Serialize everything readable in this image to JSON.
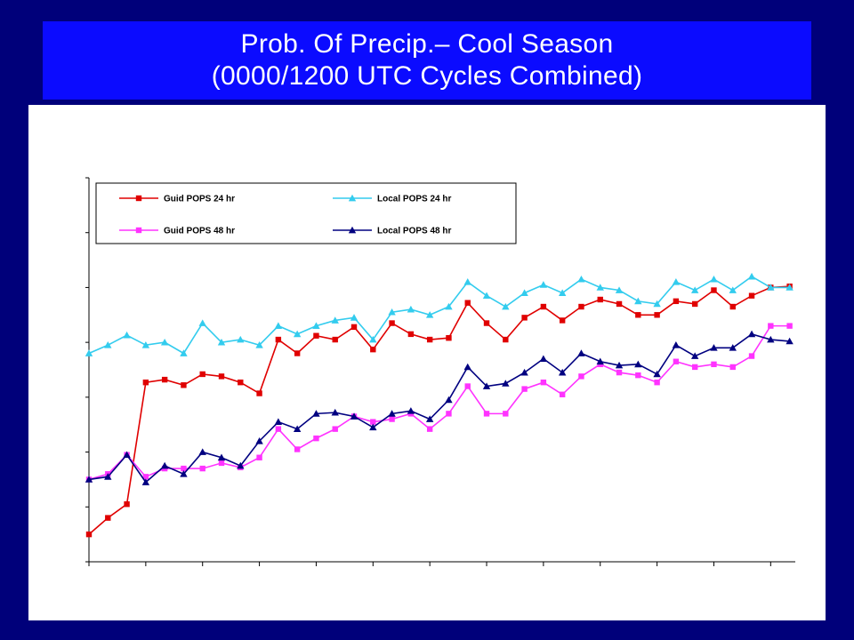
{
  "slide": {
    "title_line1": "Prob. Of Precip.– Cool Season",
    "title_line2": "(0000/1200 UTC Cycles Combined)"
  },
  "colors": {
    "background": "#00007a",
    "title_bar": "#0b0bff",
    "guid24": "#e00000",
    "local24": "#33ccee",
    "guid48": "#ff33ff",
    "local48": "#000080"
  },
  "chart_data": {
    "type": "line",
    "title": "",
    "xlabel": "",
    "ylabel": "",
    "x": [
      1,
      2,
      3,
      4,
      5,
      6,
      7,
      8,
      9,
      10,
      11,
      12,
      13,
      14,
      15,
      16,
      17,
      18,
      19,
      20,
      21,
      22,
      23,
      24,
      25,
      26,
      27,
      28,
      29,
      30,
      31,
      32,
      33,
      34,
      35,
      36,
      37,
      38
    ],
    "xlim": [
      1,
      38.3
    ],
    "ylim": [
      0,
      7
    ],
    "grid": false,
    "legend_position": "top-left",
    "series": [
      {
        "name": "Guid POPS 24 hr",
        "color": "#e00000",
        "marker": "square",
        "values": [
          0.5,
          0.8,
          1.05,
          3.27,
          3.32,
          3.22,
          3.42,
          3.38,
          3.27,
          3.07,
          4.05,
          3.8,
          4.12,
          4.05,
          4.28,
          3.87,
          4.35,
          4.15,
          4.05,
          4.08,
          4.72,
          4.35,
          4.05,
          4.45,
          4.65,
          4.4,
          4.65,
          4.78,
          4.7,
          4.5,
          4.5,
          4.75,
          4.7,
          4.95,
          4.65,
          4.85,
          5.0,
          5.02
        ]
      },
      {
        "name": "Local POPS 24 hr",
        "color": "#33ccee",
        "marker": "triangle",
        "values": [
          3.8,
          3.95,
          4.13,
          3.95,
          4.0,
          3.8,
          4.35,
          4.0,
          4.05,
          3.95,
          4.3,
          4.15,
          4.3,
          4.4,
          4.45,
          4.05,
          4.55,
          4.6,
          4.5,
          4.65,
          5.1,
          4.85,
          4.65,
          4.9,
          5.05,
          4.9,
          5.15,
          5.0,
          4.95,
          4.75,
          4.7,
          5.1,
          4.95,
          5.15,
          4.95,
          5.2,
          5.0,
          5.0
        ]
      },
      {
        "name": "Guid POPS 48 hr",
        "color": "#ff33ff",
        "marker": "square",
        "values": [
          1.5,
          1.6,
          1.95,
          1.55,
          1.7,
          1.7,
          1.7,
          1.8,
          1.72,
          1.9,
          2.42,
          2.05,
          2.25,
          2.42,
          2.65,
          2.55,
          2.6,
          2.7,
          2.42,
          2.7,
          3.2,
          2.7,
          2.7,
          3.15,
          3.27,
          3.05,
          3.38,
          3.6,
          3.45,
          3.4,
          3.27,
          3.65,
          3.55,
          3.6,
          3.55,
          3.75,
          4.3,
          4.3
        ]
      },
      {
        "name": "Local POPS 48 hr",
        "color": "#000080",
        "marker": "triangle",
        "values": [
          1.5,
          1.55,
          1.95,
          1.45,
          1.75,
          1.6,
          2.0,
          1.9,
          1.75,
          2.2,
          2.55,
          2.42,
          2.7,
          2.72,
          2.65,
          2.45,
          2.7,
          2.75,
          2.6,
          2.95,
          3.55,
          3.2,
          3.25,
          3.45,
          3.7,
          3.45,
          3.8,
          3.65,
          3.58,
          3.6,
          3.42,
          3.95,
          3.75,
          3.9,
          3.9,
          4.15,
          4.05,
          4.02
        ]
      }
    ]
  }
}
